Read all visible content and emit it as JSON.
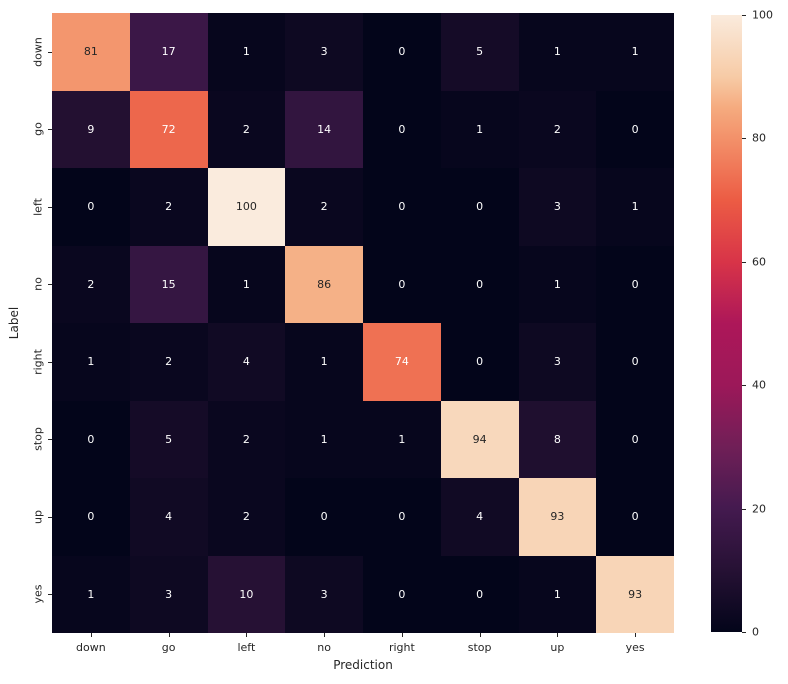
{
  "chart_data": {
    "type": "heatmap",
    "title": "",
    "xlabel": "Prediction",
    "ylabel": "Label",
    "x_categories": [
      "down",
      "go",
      "left",
      "no",
      "right",
      "stop",
      "up",
      "yes"
    ],
    "y_categories": [
      "down",
      "go",
      "left",
      "no",
      "right",
      "stop",
      "up",
      "yes"
    ],
    "matrix": [
      [
        81,
        17,
        1,
        3,
        0,
        5,
        1,
        1
      ],
      [
        9,
        72,
        2,
        14,
        0,
        1,
        2,
        0
      ],
      [
        0,
        2,
        100,
        2,
        0,
        0,
        3,
        1
      ],
      [
        2,
        15,
        1,
        86,
        0,
        0,
        1,
        0
      ],
      [
        1,
        2,
        4,
        1,
        74,
        0,
        3,
        0
      ],
      [
        0,
        5,
        2,
        1,
        1,
        94,
        8,
        0
      ],
      [
        0,
        4,
        2,
        0,
        0,
        4,
        93,
        0
      ],
      [
        1,
        3,
        10,
        3,
        0,
        0,
        1,
        93
      ]
    ],
    "vmin": 0,
    "vmax": 100,
    "grid": false,
    "legend_position": "colorbar-right",
    "colorbar_ticks": [
      0,
      20,
      40,
      60,
      80,
      100
    ],
    "colormap": {
      "name": "rocket",
      "stops": [
        [
          0,
          "#03051a"
        ],
        [
          10,
          "#261134"
        ],
        [
          20,
          "#441a4f"
        ],
        [
          30,
          "#701f57"
        ],
        [
          40,
          "#9c1859"
        ],
        [
          50,
          "#ad1759"
        ],
        [
          60,
          "#d83448"
        ],
        [
          70,
          "#ec5c44"
        ],
        [
          80,
          "#f3916a"
        ],
        [
          85,
          "#f5ab7f"
        ],
        [
          90,
          "#f7cba6"
        ],
        [
          100,
          "#faebdd"
        ]
      ]
    },
    "annotation_text_color_light_cells": "#262626",
    "annotation_text_color_dark_cells": "#ffffff",
    "tick_color": "#262626"
  }
}
